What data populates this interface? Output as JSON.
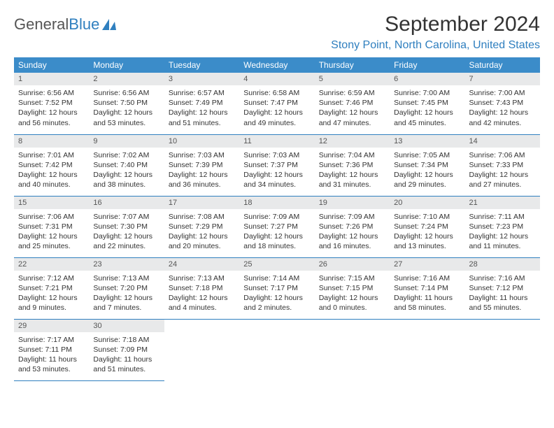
{
  "logo": {
    "text1": "General",
    "text2": "Blue"
  },
  "title": "September 2024",
  "location": "Stony Point, North Carolina, United States",
  "header_bg": "#3b8cc9",
  "daynum_bg": "#e8e9ea",
  "border_color": "#2f7fbf",
  "weekdays": [
    "Sunday",
    "Monday",
    "Tuesday",
    "Wednesday",
    "Thursday",
    "Friday",
    "Saturday"
  ],
  "weeks": [
    [
      {
        "n": "1",
        "sr": "Sunrise: 6:56 AM",
        "ss": "Sunset: 7:52 PM",
        "d1": "Daylight: 12 hours",
        "d2": "and 56 minutes."
      },
      {
        "n": "2",
        "sr": "Sunrise: 6:56 AM",
        "ss": "Sunset: 7:50 PM",
        "d1": "Daylight: 12 hours",
        "d2": "and 53 minutes."
      },
      {
        "n": "3",
        "sr": "Sunrise: 6:57 AM",
        "ss": "Sunset: 7:49 PM",
        "d1": "Daylight: 12 hours",
        "d2": "and 51 minutes."
      },
      {
        "n": "4",
        "sr": "Sunrise: 6:58 AM",
        "ss": "Sunset: 7:47 PM",
        "d1": "Daylight: 12 hours",
        "d2": "and 49 minutes."
      },
      {
        "n": "5",
        "sr": "Sunrise: 6:59 AM",
        "ss": "Sunset: 7:46 PM",
        "d1": "Daylight: 12 hours",
        "d2": "and 47 minutes."
      },
      {
        "n": "6",
        "sr": "Sunrise: 7:00 AM",
        "ss": "Sunset: 7:45 PM",
        "d1": "Daylight: 12 hours",
        "d2": "and 45 minutes."
      },
      {
        "n": "7",
        "sr": "Sunrise: 7:00 AM",
        "ss": "Sunset: 7:43 PM",
        "d1": "Daylight: 12 hours",
        "d2": "and 42 minutes."
      }
    ],
    [
      {
        "n": "8",
        "sr": "Sunrise: 7:01 AM",
        "ss": "Sunset: 7:42 PM",
        "d1": "Daylight: 12 hours",
        "d2": "and 40 minutes."
      },
      {
        "n": "9",
        "sr": "Sunrise: 7:02 AM",
        "ss": "Sunset: 7:40 PM",
        "d1": "Daylight: 12 hours",
        "d2": "and 38 minutes."
      },
      {
        "n": "10",
        "sr": "Sunrise: 7:03 AM",
        "ss": "Sunset: 7:39 PM",
        "d1": "Daylight: 12 hours",
        "d2": "and 36 minutes."
      },
      {
        "n": "11",
        "sr": "Sunrise: 7:03 AM",
        "ss": "Sunset: 7:37 PM",
        "d1": "Daylight: 12 hours",
        "d2": "and 34 minutes."
      },
      {
        "n": "12",
        "sr": "Sunrise: 7:04 AM",
        "ss": "Sunset: 7:36 PM",
        "d1": "Daylight: 12 hours",
        "d2": "and 31 minutes."
      },
      {
        "n": "13",
        "sr": "Sunrise: 7:05 AM",
        "ss": "Sunset: 7:34 PM",
        "d1": "Daylight: 12 hours",
        "d2": "and 29 minutes."
      },
      {
        "n": "14",
        "sr": "Sunrise: 7:06 AM",
        "ss": "Sunset: 7:33 PM",
        "d1": "Daylight: 12 hours",
        "d2": "and 27 minutes."
      }
    ],
    [
      {
        "n": "15",
        "sr": "Sunrise: 7:06 AM",
        "ss": "Sunset: 7:31 PM",
        "d1": "Daylight: 12 hours",
        "d2": "and 25 minutes."
      },
      {
        "n": "16",
        "sr": "Sunrise: 7:07 AM",
        "ss": "Sunset: 7:30 PM",
        "d1": "Daylight: 12 hours",
        "d2": "and 22 minutes."
      },
      {
        "n": "17",
        "sr": "Sunrise: 7:08 AM",
        "ss": "Sunset: 7:29 PM",
        "d1": "Daylight: 12 hours",
        "d2": "and 20 minutes."
      },
      {
        "n": "18",
        "sr": "Sunrise: 7:09 AM",
        "ss": "Sunset: 7:27 PM",
        "d1": "Daylight: 12 hours",
        "d2": "and 18 minutes."
      },
      {
        "n": "19",
        "sr": "Sunrise: 7:09 AM",
        "ss": "Sunset: 7:26 PM",
        "d1": "Daylight: 12 hours",
        "d2": "and 16 minutes."
      },
      {
        "n": "20",
        "sr": "Sunrise: 7:10 AM",
        "ss": "Sunset: 7:24 PM",
        "d1": "Daylight: 12 hours",
        "d2": "and 13 minutes."
      },
      {
        "n": "21",
        "sr": "Sunrise: 7:11 AM",
        "ss": "Sunset: 7:23 PM",
        "d1": "Daylight: 12 hours",
        "d2": "and 11 minutes."
      }
    ],
    [
      {
        "n": "22",
        "sr": "Sunrise: 7:12 AM",
        "ss": "Sunset: 7:21 PM",
        "d1": "Daylight: 12 hours",
        "d2": "and 9 minutes."
      },
      {
        "n": "23",
        "sr": "Sunrise: 7:13 AM",
        "ss": "Sunset: 7:20 PM",
        "d1": "Daylight: 12 hours",
        "d2": "and 7 minutes."
      },
      {
        "n": "24",
        "sr": "Sunrise: 7:13 AM",
        "ss": "Sunset: 7:18 PM",
        "d1": "Daylight: 12 hours",
        "d2": "and 4 minutes."
      },
      {
        "n": "25",
        "sr": "Sunrise: 7:14 AM",
        "ss": "Sunset: 7:17 PM",
        "d1": "Daylight: 12 hours",
        "d2": "and 2 minutes."
      },
      {
        "n": "26",
        "sr": "Sunrise: 7:15 AM",
        "ss": "Sunset: 7:15 PM",
        "d1": "Daylight: 12 hours",
        "d2": "and 0 minutes."
      },
      {
        "n": "27",
        "sr": "Sunrise: 7:16 AM",
        "ss": "Sunset: 7:14 PM",
        "d1": "Daylight: 11 hours",
        "d2": "and 58 minutes."
      },
      {
        "n": "28",
        "sr": "Sunrise: 7:16 AM",
        "ss": "Sunset: 7:12 PM",
        "d1": "Daylight: 11 hours",
        "d2": "and 55 minutes."
      }
    ],
    [
      {
        "n": "29",
        "sr": "Sunrise: 7:17 AM",
        "ss": "Sunset: 7:11 PM",
        "d1": "Daylight: 11 hours",
        "d2": "and 53 minutes."
      },
      {
        "n": "30",
        "sr": "Sunrise: 7:18 AM",
        "ss": "Sunset: 7:09 PM",
        "d1": "Daylight: 11 hours",
        "d2": "and 51 minutes."
      },
      null,
      null,
      null,
      null,
      null
    ]
  ]
}
